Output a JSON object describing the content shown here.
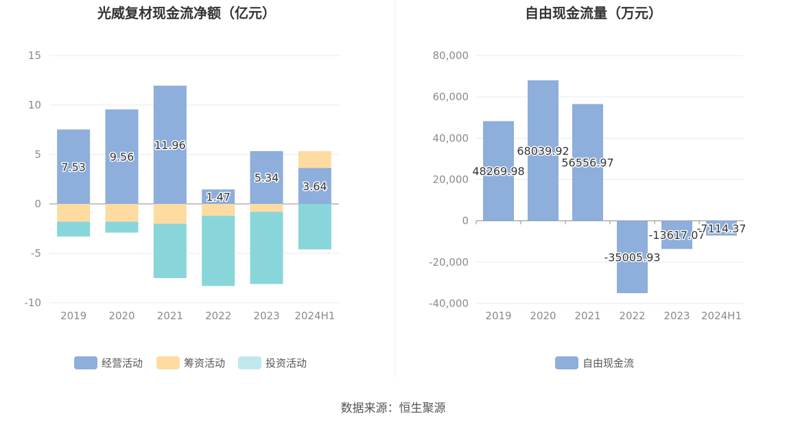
{
  "source": "数据来源：恒生聚源",
  "colors": {
    "operating": "#8eaedb",
    "financing": "#fddba1",
    "investing": "#88d6da",
    "investing_legend": "#c0e8ec",
    "fcf": "#8eaedb",
    "grid": "#e6e9f2",
    "axis": "#888888"
  },
  "chart_data": [
    {
      "type": "bar",
      "stacked": true,
      "title": "光威复材现金流净额（亿元）",
      "categories": [
        "2019",
        "2020",
        "2021",
        "2022",
        "2023",
        "2024H1"
      ],
      "series": [
        {
          "name": "经营活动",
          "values": [
            7.53,
            9.56,
            11.96,
            1.47,
            5.34,
            3.64
          ]
        },
        {
          "name": "筹资活动",
          "values": [
            -1.8,
            -1.8,
            -2.0,
            -1.2,
            -0.8,
            1.7
          ]
        },
        {
          "name": "投资活动",
          "values": [
            -1.5,
            -1.1,
            -5.5,
            -7.1,
            -7.3,
            -4.6
          ]
        }
      ],
      "data_labels": [
        "7.53",
        "9.56",
        "11.96",
        "1.47",
        "5.34",
        "3.64"
      ],
      "ylim": [
        -10,
        15
      ],
      "yticks": [
        "15",
        "10",
        "5",
        "0",
        "-5",
        "-10"
      ],
      "legend_position": "bottom",
      "grid": true
    },
    {
      "type": "bar",
      "title": "自由现金流量（万元）",
      "categories": [
        "2019",
        "2020",
        "2021",
        "2022",
        "2023",
        "2024H1"
      ],
      "series": [
        {
          "name": "自由现金流",
          "values": [
            48269.98,
            68039.92,
            56556.97,
            -35005.93,
            -13617.07,
            -7114.37
          ]
        }
      ],
      "data_labels": [
        "48269.98",
        "68039.92",
        "56556.97",
        "-35005.93",
        "-13617.07",
        "-7114.37"
      ],
      "ylim": [
        -40000,
        80000
      ],
      "yticks": [
        "80,000",
        "60,000",
        "40,000",
        "20,000",
        "0",
        "-20,000",
        "-40,000"
      ],
      "legend_position": "bottom",
      "grid": true
    }
  ]
}
